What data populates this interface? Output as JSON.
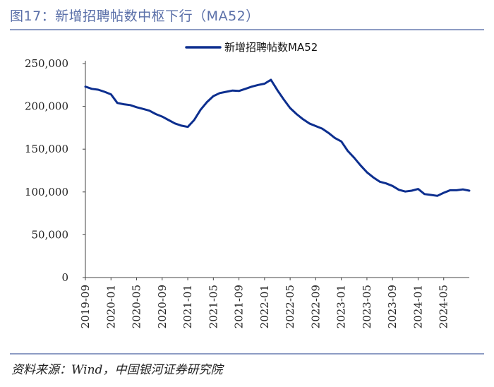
{
  "figure": {
    "title": "图17：新增招聘帖数中枢下行（MA52）",
    "source": "资料来源：Wind，中国银河证券研究院"
  },
  "colors": {
    "line": "#0d2f8f",
    "accent": "#5a6fa8",
    "axis": "#444444"
  },
  "chart_data": {
    "type": "line",
    "title": "",
    "xlabel": "",
    "ylabel": "",
    "ylim": [
      0,
      250000
    ],
    "yticks": [
      0,
      50000,
      100000,
      150000,
      200000,
      250000
    ],
    "ytick_labels": [
      "0",
      "50,000",
      "100,000",
      "150,000",
      "200,000",
      "250,000"
    ],
    "x_tick_labels": [
      "2019-09",
      "2020-01",
      "2020-05",
      "2020-09",
      "2021-01",
      "2021-05",
      "2021-09",
      "2022-01",
      "2022-05",
      "2022-09",
      "2023-01",
      "2023-05",
      "2023-09",
      "2024-01",
      "2024-05"
    ],
    "x_range": [
      "2019-09",
      "2024-09"
    ],
    "grid": false,
    "legend_position": "top-center",
    "series": [
      {
        "name": "新增招聘帖数MA52",
        "points": [
          [
            "2019-09",
            223000
          ],
          [
            "2019-10",
            220500
          ],
          [
            "2019-11",
            219500
          ],
          [
            "2019-12",
            217000
          ],
          [
            "2020-01",
            214000
          ],
          [
            "2020-02",
            204000
          ],
          [
            "2020-03",
            202500
          ],
          [
            "2020-04",
            201500
          ],
          [
            "2020-05",
            199000
          ],
          [
            "2020-06",
            197000
          ],
          [
            "2020-07",
            195000
          ],
          [
            "2020-08",
            191000
          ],
          [
            "2020-09",
            188000
          ],
          [
            "2020-10",
            184000
          ],
          [
            "2020-11",
            180000
          ],
          [
            "2020-12",
            177500
          ],
          [
            "2021-01",
            176000
          ],
          [
            "2021-02",
            184000
          ],
          [
            "2021-03",
            196000
          ],
          [
            "2021-04",
            205000
          ],
          [
            "2021-05",
            212000
          ],
          [
            "2021-06",
            215500
          ],
          [
            "2021-07",
            217000
          ],
          [
            "2021-08",
            218500
          ],
          [
            "2021-09",
            218000
          ],
          [
            "2021-10",
            220500
          ],
          [
            "2021-11",
            223000
          ],
          [
            "2021-12",
            225000
          ],
          [
            "2022-01",
            226500
          ],
          [
            "2022-02",
            231000
          ],
          [
            "2022-03",
            219000
          ],
          [
            "2022-04",
            208000
          ],
          [
            "2022-05",
            198000
          ],
          [
            "2022-06",
            191000
          ],
          [
            "2022-07",
            185000
          ],
          [
            "2022-08",
            180000
          ],
          [
            "2022-09",
            177000
          ],
          [
            "2022-10",
            174000
          ],
          [
            "2022-11",
            169000
          ],
          [
            "2022-12",
            163000
          ],
          [
            "2023-01",
            159000
          ],
          [
            "2023-02",
            148000
          ],
          [
            "2023-03",
            140000
          ],
          [
            "2023-04",
            131000
          ],
          [
            "2023-05",
            123000
          ],
          [
            "2023-06",
            117000
          ],
          [
            "2023-07",
            112000
          ],
          [
            "2023-08",
            110000
          ],
          [
            "2023-09",
            107000
          ],
          [
            "2023-10",
            102500
          ],
          [
            "2023-11",
            100500
          ],
          [
            "2023-12",
            101500
          ],
          [
            "2024-01",
            103500
          ],
          [
            "2024-02",
            97500
          ],
          [
            "2024-03",
            96500
          ],
          [
            "2024-04",
            95500
          ],
          [
            "2024-05",
            99000
          ],
          [
            "2024-06",
            102000
          ],
          [
            "2024-07",
            102000
          ],
          [
            "2024-08",
            103000
          ],
          [
            "2024-09",
            101500
          ]
        ]
      }
    ]
  }
}
